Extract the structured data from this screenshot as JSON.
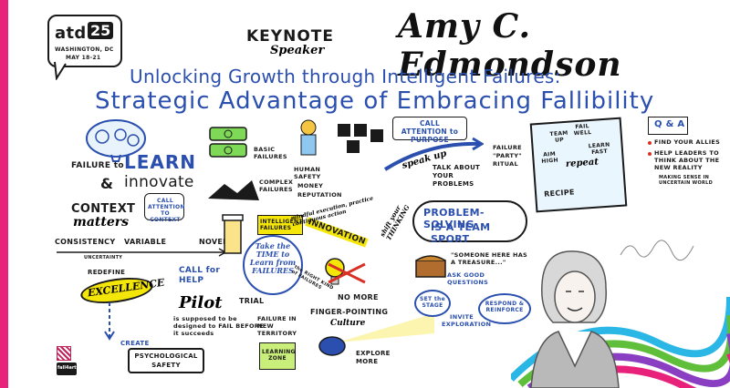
{
  "event": {
    "logo_text": "atd",
    "logo_number": "25",
    "location": "WASHINGTON, DC",
    "dates": "MAY 18-21"
  },
  "header": {
    "keynote": "KEYNOTE",
    "speaker": "Speaker",
    "name": "Amy C. Edmondson",
    "title_line1": "Unlocking Growth through Intelligent Failures:",
    "title_line2": "Strategic Advantage of Embracing Fallibility"
  },
  "left": {
    "failure_to": "FAILURE to",
    "learn": "LEARN",
    "amp": "&",
    "innovate": "innovate",
    "context": "CONTEXT",
    "matters": "matters",
    "call_attention_context": "CALL ATTENTION TO CONTEXT",
    "consistency": "CONSISTENCY",
    "variable": "VARIABLE",
    "novel": "NOVEL",
    "uncertainty": "UNCERTAINTY",
    "redefine": "REDEFINE",
    "excellence": "EXCELLENCE",
    "create": "CREATE",
    "psych_safety": "PSYCHOLOGICAL SAFETY",
    "call_for_help": "CALL for HELP",
    "pilot": "Pilot",
    "pilot_desc": "is supposed to be designed to FAIL BEFORE it succeeds",
    "trial": "TRIAL",
    "failure_new_territory": "FAILURE IN NEW TERRITORY",
    "learning_zone": "LEARNING ZONE",
    "credit": "fall4art"
  },
  "middle": {
    "basic_failures": "BASIC FAILURES",
    "complex_failures": "COMPLEX FAILURES",
    "intelligent_failures": "INTELLIGENT FAILURES",
    "take_time": "Take the TIME to Learn from FAILURES",
    "right_kind": "the RIGHT KIND of FAILURES",
    "innovation": "INNOVATION",
    "no_more": "NO MORE",
    "finger_pointing": "FINGER-POINTING",
    "culture": "Culture",
    "explore_more": "EXPLORE MORE",
    "human_safety": "HUMAN SAFETY",
    "money": "MONEY",
    "reputation": "REPUTATION",
    "mindful_execution": "mindful execution, practice continuous action",
    "shift_thinking": "shift your THINKING"
  },
  "right_center": {
    "call_attention_purpose": "CALL ATTENTION to PURPOSE",
    "speak_up": "speak up",
    "talk_problems": "TALK ABOUT YOUR PROBLEMS",
    "failure_party": "FAILURE \"PARTY\" RITUAL",
    "problem_solving": "PROBLEM-SOLVING",
    "team_sport": "IS A TEAM SPORT",
    "treasure": "\"SOMEONE HERE HAS A TREASURE...\"",
    "ask_questions": "ASK GOOD QUESTIONS",
    "set_stage": "SET the STAGE",
    "invite": "INVITE EXPLORATION",
    "respond": "RESPOND & REINFORCE"
  },
  "recipe": {
    "label": "RECIPE",
    "team_up": "TEAM UP",
    "fail_well": "FAIL WELL",
    "aim_high": "AIM HIGH",
    "learn_fast": "LEARN FAST",
    "repeat": "repeat"
  },
  "qa": {
    "title": "Q & A",
    "items": [
      "FIND YOUR ALLIES",
      "HELP LEADERS TO THINK ABOUT THE NEW REALITY"
    ],
    "sub": "MAKING SENSE IN UNCERTAIN WORLD"
  },
  "colors": {
    "left_bar": "#e8227b",
    "blue": "#2a4fae",
    "yellow": "#f5e60a",
    "green": "#5fbf3a",
    "purple": "#8a3fc2",
    "cyan": "#2bb7e6",
    "pink": "#e8227b"
  }
}
